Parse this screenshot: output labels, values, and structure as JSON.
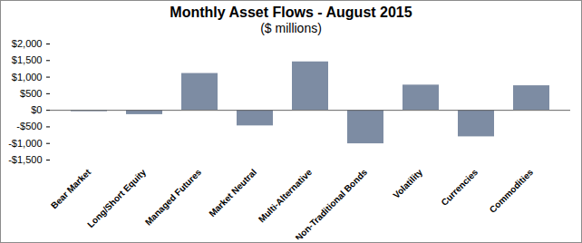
{
  "chart_data": {
    "type": "bar",
    "title": "Monthly Asset Flows - August 2015",
    "subtitle": "($ millions)",
    "categories": [
      "Bear Market",
      "Long/Short Equity",
      "Managed Futures",
      "Market Neutral",
      "Multi-Alternative",
      "Non-Traditional Bonds",
      "Volatility",
      "Currencies",
      "Commodities"
    ],
    "values": [
      -40,
      -130,
      1110,
      -470,
      1460,
      -1010,
      760,
      -800,
      740
    ],
    "color": "#7d8ca3",
    "ylim": [
      -1500,
      2000
    ],
    "yticks": [
      {
        "value": -1500,
        "label": "-$1,500"
      },
      {
        "value": -1000,
        "label": "-$1,000"
      },
      {
        "value": -500,
        "label": "-$500"
      },
      {
        "value": 0,
        "label": "$0"
      },
      {
        "value": 500,
        "label": "$500"
      },
      {
        "value": 1000,
        "label": "$1,000"
      },
      {
        "value": 1500,
        "label": "$1,500"
      },
      {
        "value": 2000,
        "label": "$2,000"
      }
    ],
    "grid": false
  }
}
